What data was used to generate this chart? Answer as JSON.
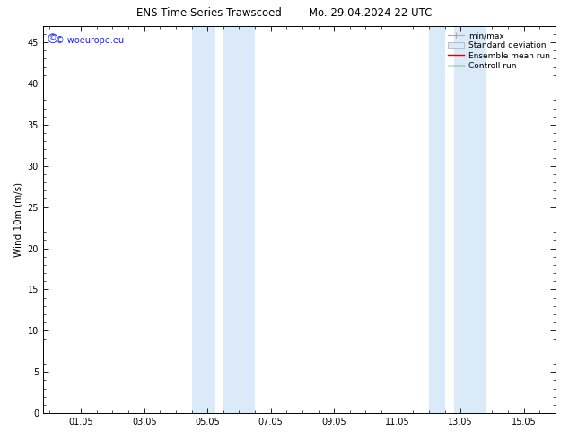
{
  "title": "ENS Time Series Trawscoed        Mo. 29.04.2024 22 UTC",
  "ylabel": "Wind 10m (m/s)",
  "ylim": [
    0,
    47
  ],
  "yticks": [
    0,
    5,
    10,
    15,
    20,
    25,
    30,
    35,
    40,
    45
  ],
  "xtick_labels": [
    "01.05",
    "03.05",
    "05.05",
    "07.05",
    "09.05",
    "11.05",
    "13.05",
    "15.05"
  ],
  "xtick_positions": [
    0,
    2,
    4,
    6,
    8,
    10,
    12,
    14
  ],
  "x_min": -1.2,
  "x_max": 15.0,
  "shaded_bands": [
    [
      3.5,
      4.25
    ],
    [
      4.5,
      5.5
    ],
    [
      11.0,
      11.5
    ],
    [
      11.8,
      12.8
    ]
  ],
  "shaded_color": "#daeaf8",
  "background_color": "#ffffff",
  "watermark_text": "© woeurope.eu",
  "watermark_color": "#1a1aff",
  "legend_minmax_color": "#aaaaaa",
  "legend_std_facecolor": "#daeaf8",
  "legend_std_edgecolor": "#aaaaaa",
  "legend_mean_color": "#dd0000",
  "legend_ctrl_color": "#007700",
  "spine_color": "#000000",
  "font_size_title": 8.5,
  "font_size_axis_label": 7.5,
  "font_size_ticks": 7,
  "font_size_legend": 6.5,
  "font_size_watermark": 7
}
